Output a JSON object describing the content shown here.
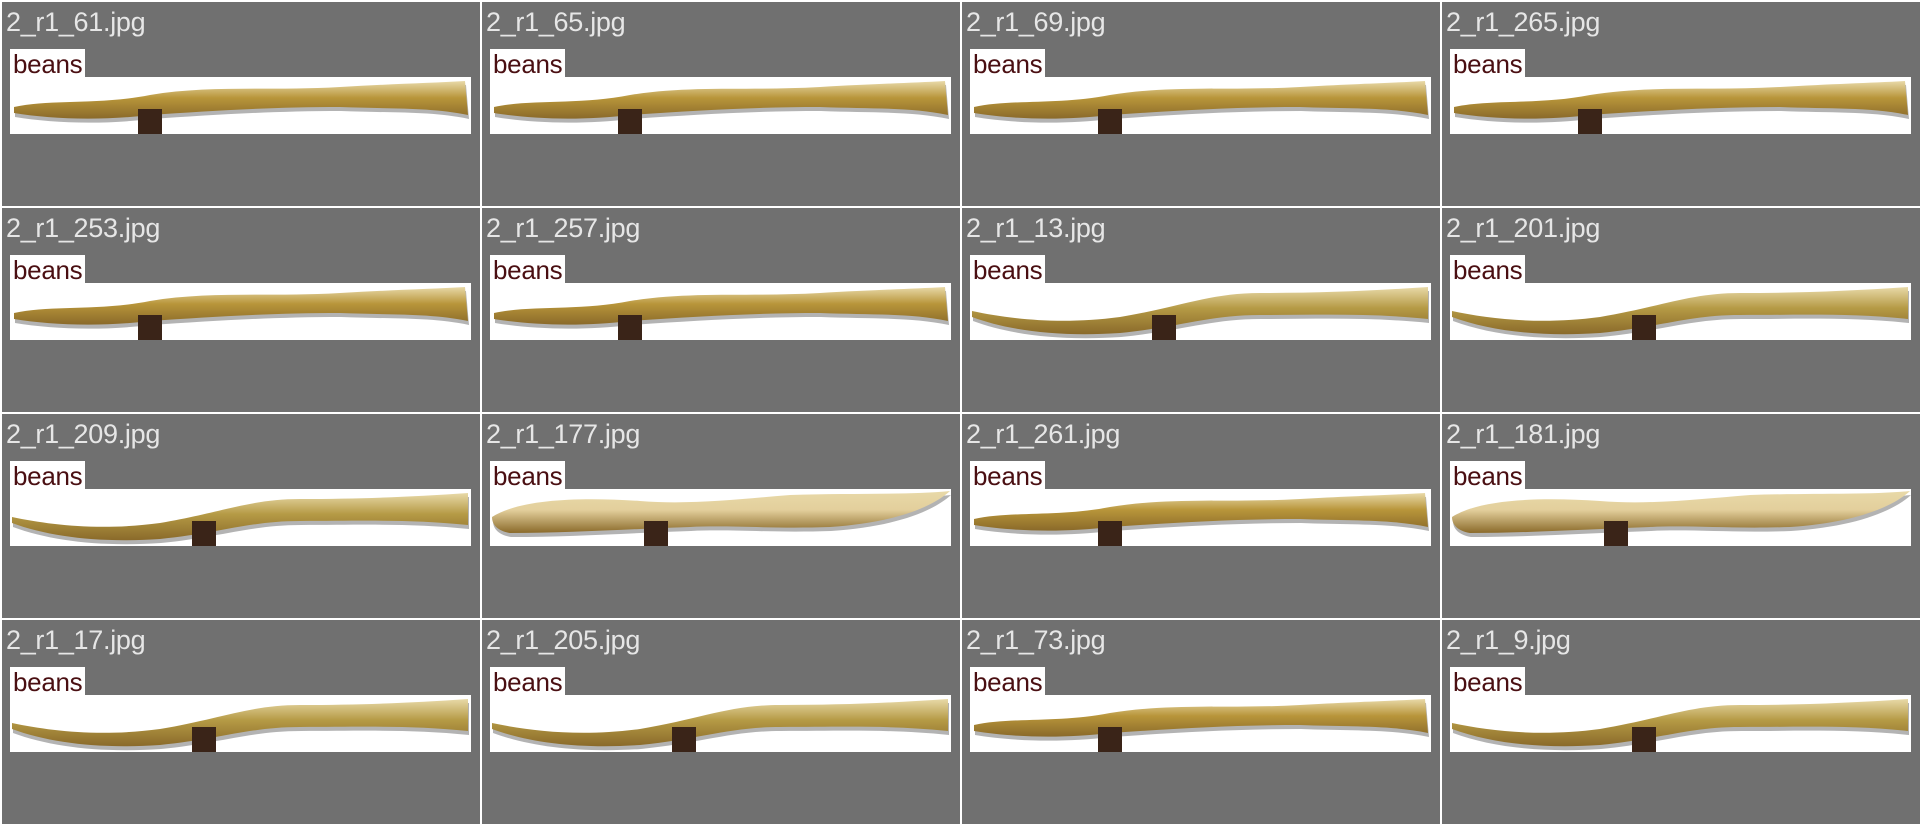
{
  "images": [
    {
      "filename": "2_r1_61.jpg",
      "label": "beans",
      "shape": "thin"
    },
    {
      "filename": "2_r1_65.jpg",
      "label": "beans",
      "shape": "thin"
    },
    {
      "filename": "2_r1_69.jpg",
      "label": "beans",
      "shape": "thin"
    },
    {
      "filename": "2_r1_265.jpg",
      "label": "beans",
      "shape": "thin"
    },
    {
      "filename": "2_r1_253.jpg",
      "label": "beans",
      "shape": "thin"
    },
    {
      "filename": "2_r1_257.jpg",
      "label": "beans",
      "shape": "thin"
    },
    {
      "filename": "2_r1_13.jpg",
      "label": "beans",
      "shape": "wavy"
    },
    {
      "filename": "2_r1_201.jpg",
      "label": "beans",
      "shape": "wavy"
    },
    {
      "filename": "2_r1_209.jpg",
      "label": "beans",
      "shape": "wavy"
    },
    {
      "filename": "2_r1_177.jpg",
      "label": "beans",
      "shape": "wide"
    },
    {
      "filename": "2_r1_261.jpg",
      "label": "beans",
      "shape": "thin"
    },
    {
      "filename": "2_r1_181.jpg",
      "label": "beans",
      "shape": "wide"
    },
    {
      "filename": "2_r1_17.jpg",
      "label": "beans",
      "shape": "wavy"
    },
    {
      "filename": "2_r1_205.jpg",
      "label": "beans",
      "shape": "wavy"
    },
    {
      "filename": "2_r1_73.jpg",
      "label": "beans",
      "shape": "thin"
    },
    {
      "filename": "2_r1_9.jpg",
      "label": "beans",
      "shape": "wavy"
    }
  ],
  "colors": {
    "tile_background": "#707070",
    "filename_text": "#e6e6e6",
    "label_text": "#4a0f12",
    "bean_thin": "#b8953a",
    "bean_wavy": "#b59a45",
    "bean_wide": "#e3cf9c",
    "stem": "#3a2418"
  }
}
